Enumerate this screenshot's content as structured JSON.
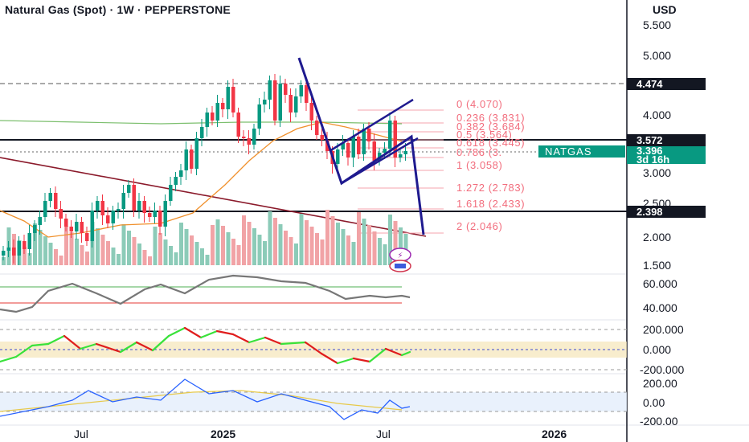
{
  "header": {
    "title": "Natural Gas (Spot) · 1W · PEPPERSTONE",
    "currency": "USD"
  },
  "price_axis": [
    "5.500",
    "5.000",
    "4.000",
    "3.000",
    "2.500",
    "2.000",
    "1.500"
  ],
  "price_tags": {
    "upper_line": "4.474",
    "resistance": "3.572",
    "current": "3.396",
    "countdown": "3d 16h",
    "support": "2.398",
    "symbol": "NATGAS"
  },
  "fib_levels": [
    "0 (4.070)",
    "0.236 (3.831)",
    "0.382 (3.684)",
    "0.5 (3.564)",
    "0.618 (3.445)",
    "0.786 (3.",
    "1 (3.058)",
    "1.272 (2.783)",
    "1.618 (2.433)",
    "2 (2.046)"
  ],
  "rsi_axis": [
    "60.000",
    "40.000"
  ],
  "cci_axis": [
    "200.000",
    "0.000",
    "-200.000"
  ],
  "cci2_axis": [
    "200.00",
    "0.00",
    "-200.00"
  ],
  "time_axis": [
    "Jul",
    "2025",
    "Jul",
    "2026"
  ],
  "colors": {
    "up": "#089981",
    "down": "#f23645",
    "accent": "#2962ff",
    "tag_dark": "#131722",
    "tag_green": "#089981",
    "fib": "#f26d7d",
    "pattern": "#1f1a8f"
  }
}
